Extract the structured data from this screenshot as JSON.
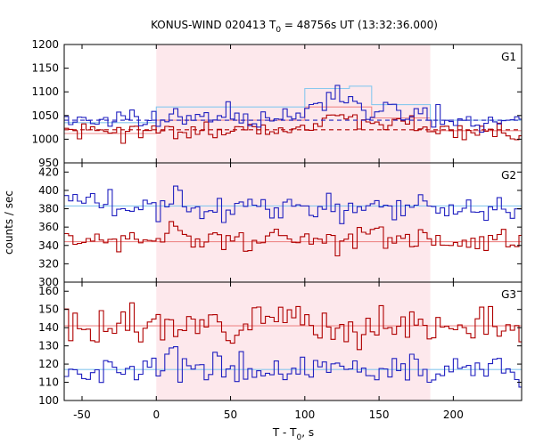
{
  "chart_data": {
    "type": "line",
    "title": {
      "pre": "KONUS-WIND 020413 T",
      "sub": "0",
      "post": " = 48756s UT (13:32:36.000)"
    },
    "xlabel": {
      "pre": "T - T",
      "sub": "0",
      "post": ", s"
    },
    "ylabel": "counts / sec",
    "xlim": [
      -62,
      246
    ],
    "xticks": [
      -50,
      0,
      50,
      100,
      150,
      200
    ],
    "shaded_interval": [
      0,
      184.5
    ],
    "colors": {
      "shade": "#fde8ec",
      "series_a": "#b00000",
      "series_b": "#2020c0",
      "fit_a": "#ee8888",
      "fit_b": "#88c8ee",
      "axis": "#000000"
    },
    "bin_width": 2.944,
    "panels": [
      {
        "label": "G1",
        "ylim": [
          950,
          1200
        ],
        "yticks": [
          950,
          1000,
          1050,
          1100,
          1150,
          1200
        ],
        "blue": {
          "base": 1040,
          "noise": 16,
          "seed": 11,
          "peaks": [
            {
              "t": 10,
              "h": 110,
              "w": 1.2
            },
            {
              "t": 118,
              "h": 50,
              "w": 22
            },
            {
              "t": 45,
              "h": 15,
              "w": 10
            },
            {
              "t": 160,
              "h": 25,
              "w": 15
            }
          ]
        },
        "red": {
          "base": 1015,
          "noise": 14,
          "seed": 23,
          "peaks": [
            {
              "t": 118,
              "h": 40,
              "w": 22
            },
            {
              "t": 160,
              "h": 20,
              "w": 14
            },
            {
              "t": 60,
              "h": 10,
              "w": 10
            }
          ]
        },
        "blue_fit": [
          [
            -62,
            1035
          ],
          [
            0,
            1035
          ],
          [
            0,
            1068
          ],
          [
            100,
            1068
          ],
          [
            100,
            1107
          ],
          [
            130,
            1107
          ],
          [
            130,
            1112
          ],
          [
            145,
            1112
          ],
          [
            145,
            1073
          ],
          [
            184.5,
            1073
          ],
          [
            184.5,
            1040
          ],
          [
            246,
            1040
          ]
        ],
        "red_fit": [
          [
            -62,
            1012
          ],
          [
            0,
            1012
          ],
          [
            0,
            1040
          ],
          [
            100,
            1040
          ],
          [
            100,
            1068
          ],
          [
            145,
            1068
          ],
          [
            145,
            1045
          ],
          [
            184.5,
            1045
          ],
          [
            184.5,
            1018
          ],
          [
            246,
            1018
          ]
        ],
        "blue_dashed": [
          [
            -62,
            1040
          ],
          [
            246,
            1040
          ]
        ],
        "red_dashed": [
          [
            -62,
            1020
          ],
          [
            246,
            1020
          ]
        ]
      },
      {
        "label": "G2",
        "ylim": [
          300,
          430
        ],
        "yticks": [
          300,
          320,
          340,
          360,
          380,
          400,
          420
        ],
        "blue": {
          "base": 382,
          "noise": 11,
          "seed": 37,
          "peaks": [
            {
              "t": 12,
              "h": 18,
              "w": 3
            }
          ]
        },
        "red": {
          "base": 346,
          "noise": 10,
          "seed": 41,
          "peaks": [
            {
              "t": 10,
              "h": 12,
              "w": 4
            }
          ]
        },
        "blue_fit": [
          [
            -62,
            383
          ],
          [
            246,
            383
          ]
        ],
        "red_fit": [
          [
            -62,
            344
          ],
          [
            246,
            344
          ]
        ]
      },
      {
        "label": "G3",
        "ylim": [
          100,
          165
        ],
        "yticks": [
          100,
          110,
          120,
          130,
          140,
          150,
          160
        ],
        "blue": {
          "base": 117,
          "noise": 6,
          "seed": 53,
          "peaks": [
            {
              "t": 10,
              "h": 18,
              "w": 2
            },
            {
              "t": 40,
              "h": 10,
              "w": 3
            }
          ]
        },
        "red": {
          "base": 141,
          "noise": 7,
          "seed": 67,
          "peaks": [
            {
              "t": 70,
              "h": 6,
              "w": 20
            }
          ]
        },
        "blue_fit": [
          [
            -62,
            117
          ],
          [
            246,
            117
          ]
        ],
        "red_fit": [
          [
            -62,
            141
          ],
          [
            246,
            141
          ]
        ]
      }
    ]
  }
}
